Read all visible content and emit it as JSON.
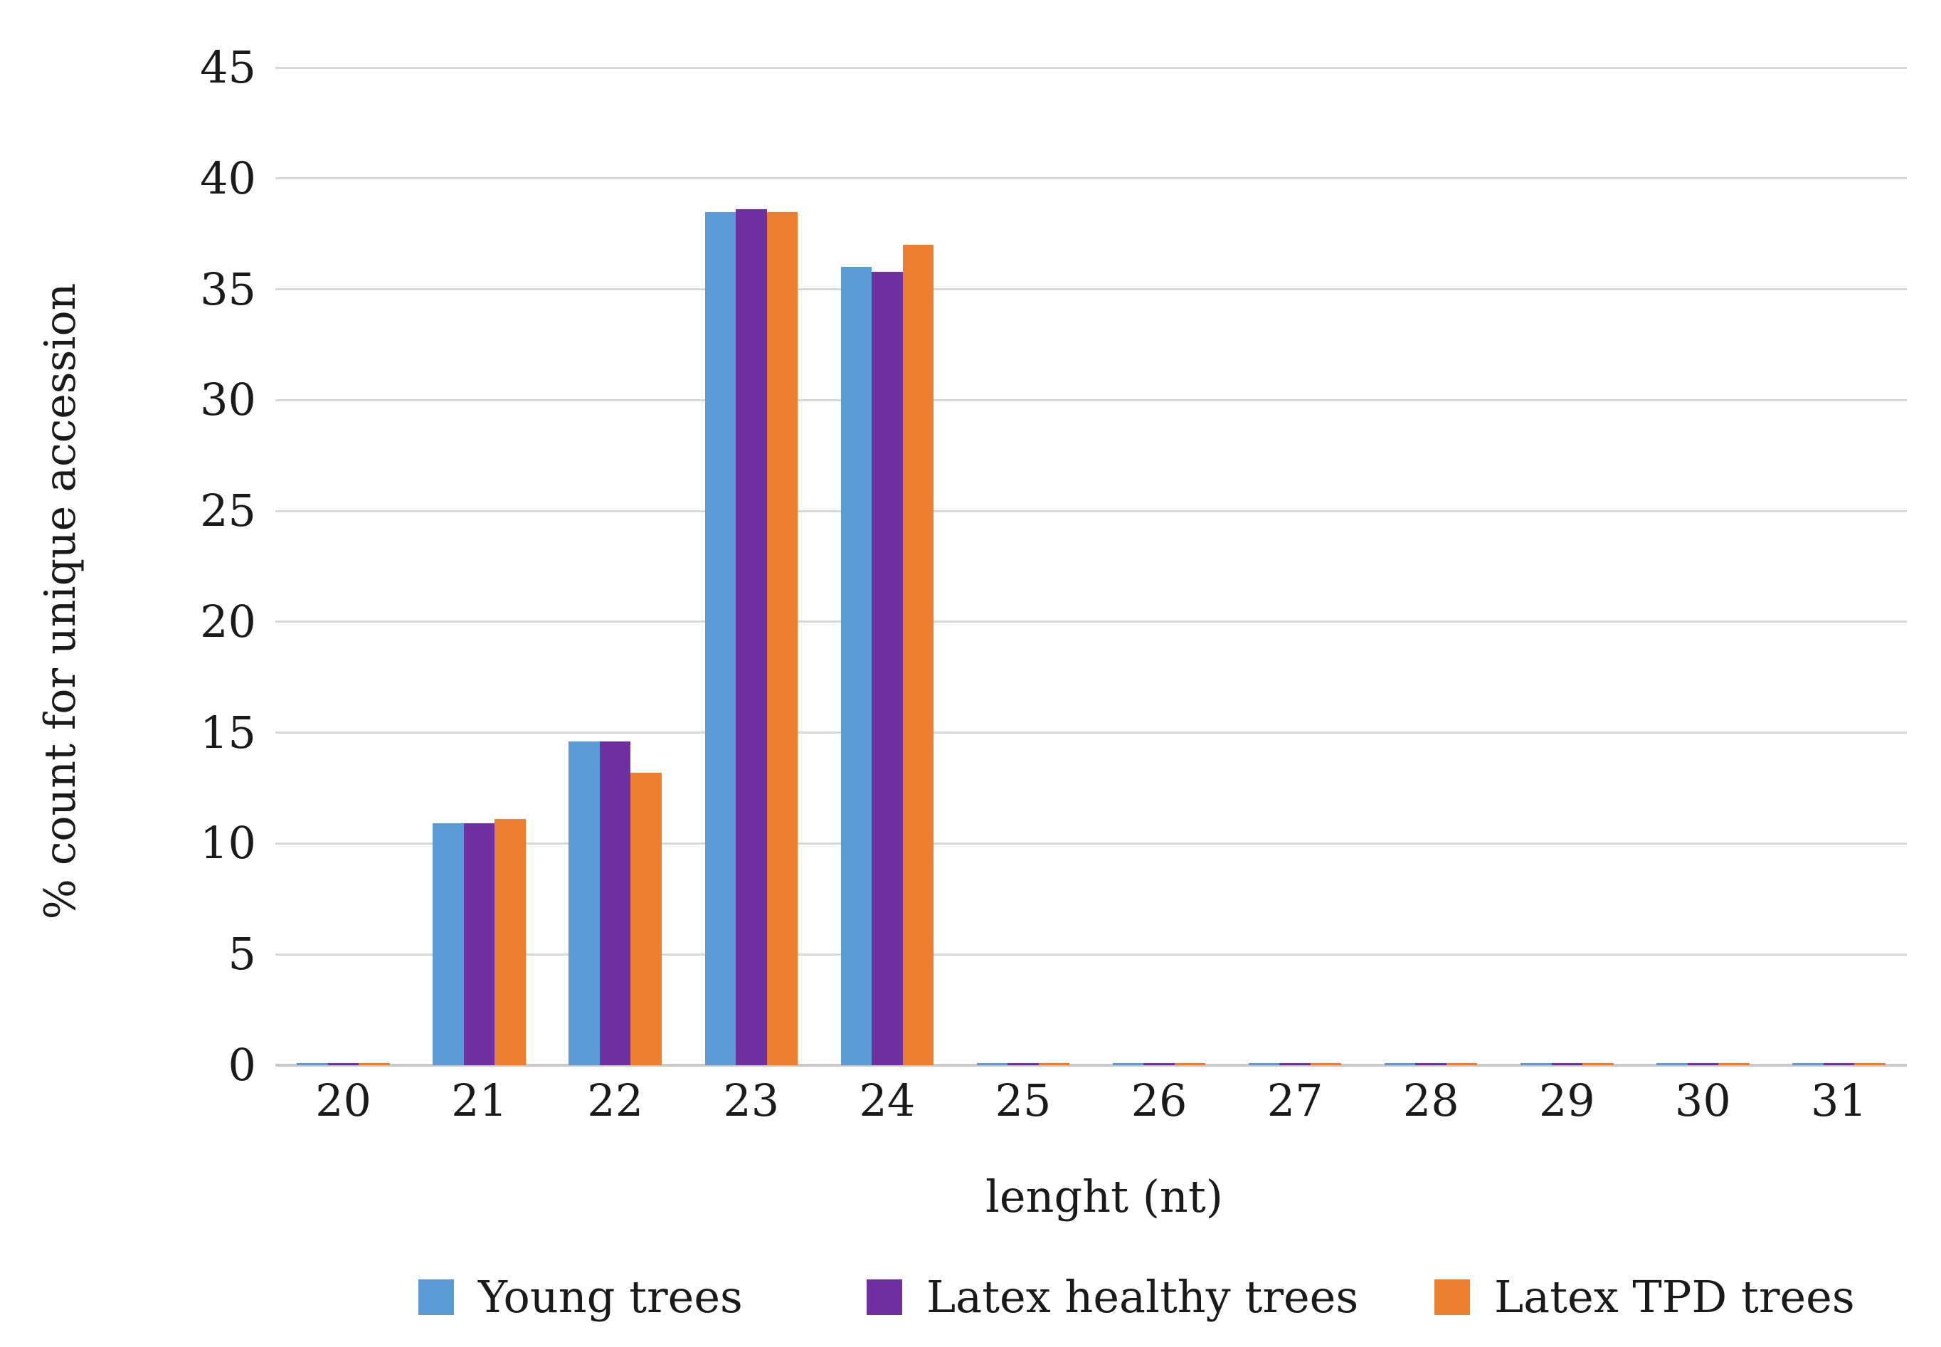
{
  "chart_data": {
    "type": "bar",
    "title": "",
    "xlabel": "lenght (nt)",
    "ylabel": "% count for unique accession",
    "categories": [
      "20",
      "21",
      "22",
      "23",
      "24",
      "25",
      "26",
      "27",
      "28",
      "29",
      "30",
      "31"
    ],
    "series": [
      {
        "name": "Young trees",
        "color": "#5B9BD5",
        "values": [
          0.1,
          10.9,
          14.6,
          38.5,
          36.0,
          0.1,
          0.1,
          0.1,
          0.1,
          0.1,
          0.1,
          0.1
        ]
      },
      {
        "name": "Latex healthy trees",
        "color": "#7030A0",
        "values": [
          0.1,
          10.9,
          14.6,
          38.6,
          35.8,
          0.1,
          0.1,
          0.1,
          0.1,
          0.1,
          0.1,
          0.1
        ]
      },
      {
        "name": "Latex TPD trees",
        "color": "#ED7D31",
        "values": [
          0.1,
          11.1,
          13.2,
          38.5,
          37.0,
          0.1,
          0.1,
          0.1,
          0.1,
          0.1,
          0.1,
          0.1
        ]
      }
    ],
    "ylim": [
      0,
      45
    ],
    "y_tick_step": 5,
    "y_tick_labels": [
      "0",
      "5",
      "10",
      "15",
      "20",
      "25",
      "30",
      "35",
      "40",
      "45"
    ],
    "grid": "horizontal",
    "legend_position": "bottom"
  },
  "colors": {
    "background": "#ffffff",
    "gridline": "#d9d9d9",
    "axis_line": "#c9c9c9",
    "text": "#1a1a1a"
  }
}
